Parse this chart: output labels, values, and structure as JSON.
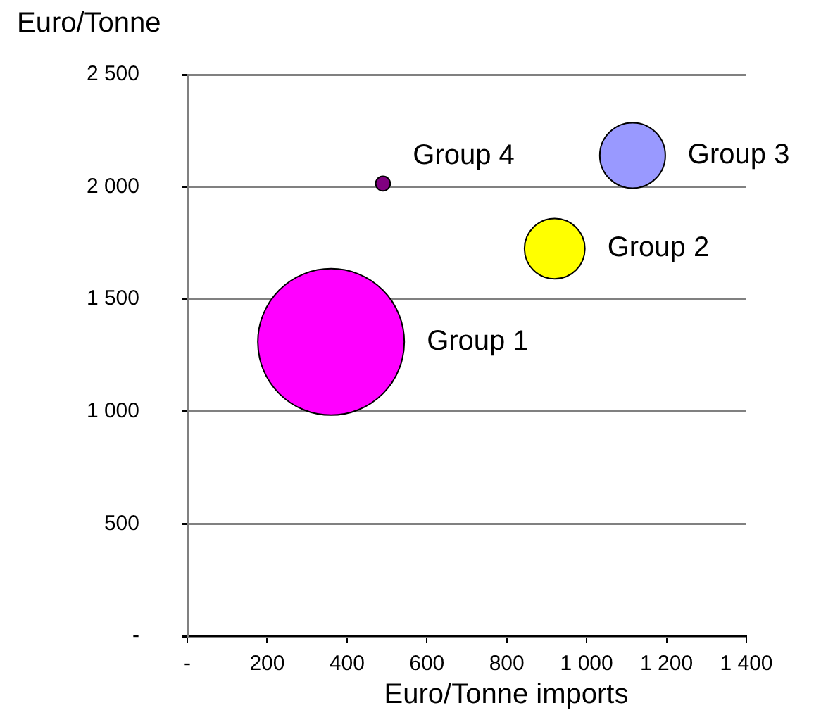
{
  "chart_data": {
    "type": "bubble",
    "xlabel": "Euro/Tonne imports",
    "ylabel": "Euro/Tonne",
    "series": [
      {
        "name": "Group 1",
        "color": "#ff00ff",
        "x": [
          360
        ],
        "values": [
          1310
        ],
        "sizes": [
          1
        ]
      },
      {
        "name": "Group 2",
        "color": "#ffff00",
        "x": [
          920
        ],
        "values": [
          1725
        ],
        "sizes": [
          0.17
        ]
      },
      {
        "name": "Group 3",
        "color": "#9999ff",
        "x": [
          1115
        ],
        "values": [
          2140
        ],
        "sizes": [
          0.2
        ]
      },
      {
        "name": "Group 4",
        "color": "#800080",
        "x": [
          490
        ],
        "values": [
          2015
        ],
        "sizes": [
          0.01
        ]
      }
    ],
    "xlim": [
      0,
      1400
    ],
    "xticks": [
      {
        "value": 0,
        "label": "-"
      },
      200,
      400,
      600,
      800,
      {
        "value": 1000,
        "label": "1 000"
      },
      {
        "value": 1200,
        "label": "1 200"
      },
      {
        "value": 1400,
        "label": "1 400"
      }
    ],
    "ylim": [
      0,
      2500
    ],
    "yticks": [
      {
        "value": 0,
        "label": "-"
      },
      500,
      {
        "value": 1000,
        "label": "1 000"
      },
      {
        "value": 1500,
        "label": "1 500"
      },
      {
        "value": 2000,
        "label": "2 000"
      },
      {
        "value": 2500,
        "label": "2 500"
      }
    ],
    "grid": "y"
  }
}
